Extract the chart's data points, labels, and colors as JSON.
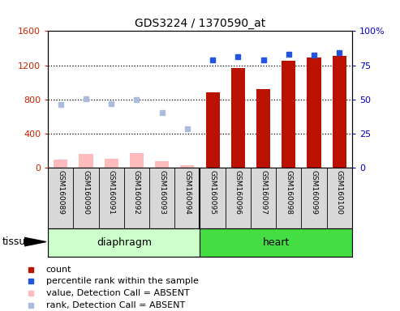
{
  "title": "GDS3224 / 1370590_at",
  "samples": [
    "GSM160089",
    "GSM160090",
    "GSM160091",
    "GSM160092",
    "GSM160093",
    "GSM160094",
    "GSM160095",
    "GSM160096",
    "GSM160097",
    "GSM160098",
    "GSM160099",
    "GSM160100"
  ],
  "bar_values": [
    0,
    0,
    0,
    0,
    0,
    0,
    880,
    1170,
    920,
    1250,
    1290,
    1310
  ],
  "bar_absent_values": [
    95,
    165,
    110,
    170,
    75,
    35,
    0,
    0,
    0,
    0,
    0,
    0
  ],
  "rank_present": [
    null,
    null,
    null,
    null,
    null,
    null,
    1260,
    1300,
    1265,
    1330,
    1315,
    1345
  ],
  "rank_absent": [
    740,
    810,
    750,
    795,
    650,
    455,
    null,
    null,
    null,
    null,
    null,
    null
  ],
  "bar_color": "#bb1100",
  "bar_absent_color": "#ffbbbb",
  "rank_present_color": "#2255dd",
  "rank_absent_color": "#aabbdd",
  "group_diaphragm_color": "#ccffcc",
  "group_heart_color": "#44dd44",
  "ylim_left": [
    0,
    1600
  ],
  "ylim_right": [
    0,
    100
  ],
  "yticks_left": [
    0,
    400,
    800,
    1200,
    1600
  ],
  "yticks_right": [
    0,
    25,
    50,
    75,
    100
  ],
  "ytick_labels_right": [
    "0",
    "25",
    "50",
    "75",
    "100%"
  ],
  "legend_items": [
    {
      "label": "count",
      "color": "#bb1100"
    },
    {
      "label": "percentile rank within the sample",
      "color": "#2255dd"
    },
    {
      "label": "value, Detection Call = ABSENT",
      "color": "#ffbbbb"
    },
    {
      "label": "rank, Detection Call = ABSENT",
      "color": "#aabbdd"
    }
  ]
}
